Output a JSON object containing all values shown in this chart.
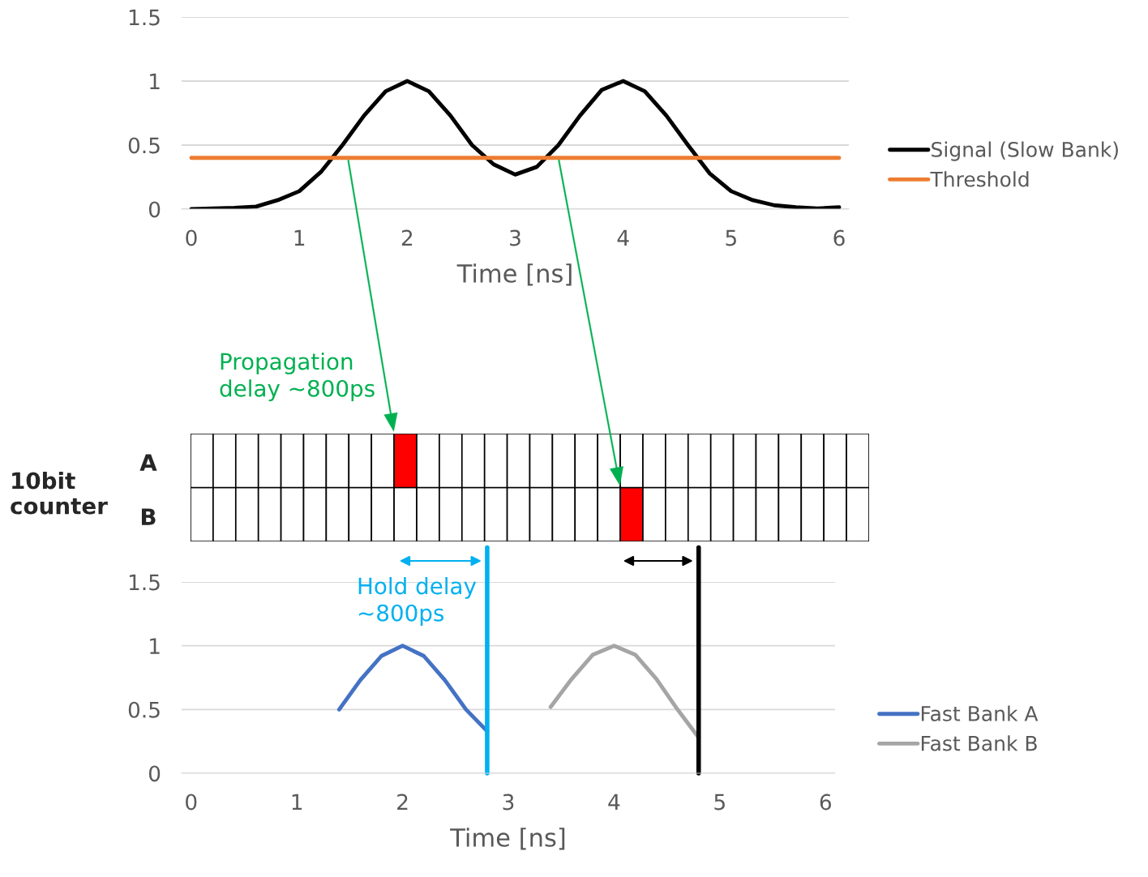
{
  "chart_data": [
    {
      "type": "line",
      "x": [
        0,
        0.2,
        0.4,
        0.6,
        0.8,
        1.0,
        1.2,
        1.4,
        1.6,
        1.8,
        2.0,
        2.2,
        2.4,
        2.6,
        2.8,
        3.0,
        3.2,
        3.4,
        3.6,
        3.8,
        4.0,
        4.2,
        4.4,
        4.6,
        4.8,
        5.0,
        5.2,
        5.4,
        5.6,
        5.8,
        6.0
      ],
      "series": [
        {
          "name": "Signal (Slow Bank)",
          "color": "#000000",
          "values": [
            0,
            0.005,
            0.01,
            0.02,
            0.07,
            0.14,
            0.29,
            0.5,
            0.73,
            0.92,
            1.0,
            0.92,
            0.73,
            0.5,
            0.35,
            0.27,
            0.33,
            0.5,
            0.73,
            0.93,
            1.0,
            0.92,
            0.73,
            0.5,
            0.28,
            0.14,
            0.07,
            0.03,
            0.015,
            0.005,
            0.015
          ]
        },
        {
          "name": "Threshold",
          "color": "#ed7d31",
          "x": [
            0,
            6
          ],
          "values": [
            0.4,
            0.4
          ]
        }
      ],
      "xlabel": "Time [ns]",
      "xlim": [
        -0.09,
        6.09
      ],
      "ylim": [
        0,
        1.5
      ],
      "xticks": [
        0,
        1,
        2,
        3,
        4,
        5,
        6
      ],
      "yticks": [
        0,
        0.5,
        1,
        1.5
      ],
      "grid": "y",
      "legend": "right",
      "marker": "none",
      "annotations": [
        "Propagation\ndelay ~800ps",
        "A",
        "B",
        "10bit\ncounter"
      ]
    },
    {
      "type": "line",
      "series": [
        {
          "name": "Fast Bank A",
          "color": "#4472c4",
          "x": [
            1.4,
            1.6,
            1.8,
            2.0,
            2.2,
            2.4,
            2.6,
            2.8
          ],
          "values": [
            0.5,
            0.73,
            0.92,
            1.0,
            0.92,
            0.73,
            0.5,
            0.33
          ]
        },
        {
          "name": "Fast Bank B",
          "color": "#a5a5a5",
          "x": [
            3.4,
            3.6,
            3.8,
            4.0,
            4.2,
            4.4,
            4.6,
            4.8
          ],
          "values": [
            0.52,
            0.74,
            0.93,
            1.0,
            0.93,
            0.74,
            0.5,
            0.28
          ]
        }
      ],
      "xlabel": "Time [ns]",
      "xlim": [
        -0.09,
        6.09
      ],
      "ylim": [
        0,
        1.5
      ],
      "xticks": [
        0,
        1,
        2,
        3,
        4,
        5,
        6
      ],
      "yticks": [
        0,
        0.5,
        1,
        1.5
      ],
      "grid": "y",
      "legend": "right",
      "marker": "none",
      "ref_lines": [
        {
          "axis": "x",
          "value": 2.8,
          "color": "#00b0f0"
        },
        {
          "axis": "x",
          "value": 4.8,
          "color": "#000000"
        }
      ],
      "annotations": [
        "Hold delay\n~800ps"
      ]
    }
  ]
}
